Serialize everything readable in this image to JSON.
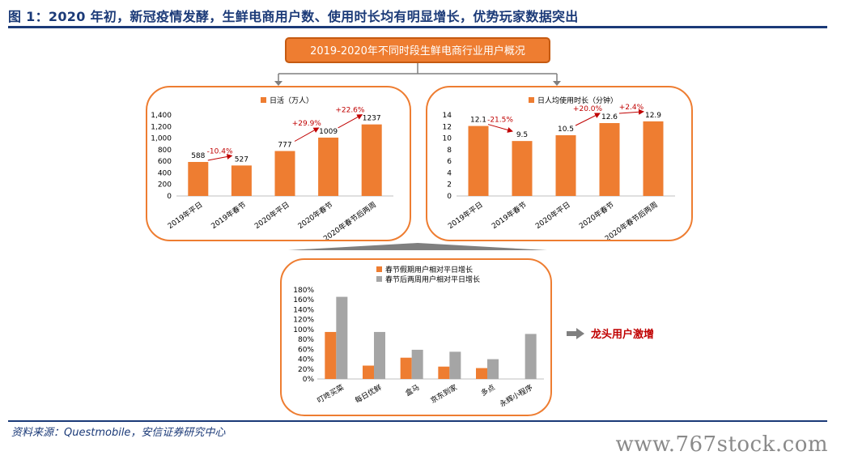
{
  "figure": {
    "title": "图 1：2020 年初，新冠疫情发酵，生鲜电商用户数、使用时长均有明显增长，优势玩家数据突出",
    "header": "2019-2020年不同时段生鲜电商行业用户概况",
    "source": "资料来源：Questmobile，安信证券研究中心",
    "watermark": "www.767stock.com",
    "note_label": "龙头用户激增"
  },
  "colors": {
    "orange": "#ee7d31",
    "gray": "#a5a5a5",
    "navy": "#1b3a78",
    "red": "#c00000"
  },
  "chart_data": [
    {
      "type": "bar",
      "legend": "日活（万人）",
      "categories": [
        "2019年平日",
        "2019年春节",
        "2020年平日",
        "2020年春节",
        "2020年春节后两周"
      ],
      "values": [
        588,
        527,
        777,
        1009,
        1237
      ],
      "data_labels": [
        "588",
        "527",
        "777",
        "1009",
        "1237"
      ],
      "ylim": [
        0,
        1400
      ],
      "yticks": [
        "0",
        "200",
        "400",
        "600",
        "800",
        "1,000",
        "1,200",
        "1,400"
      ],
      "annotations": [
        {
          "text": "-10.4%",
          "from": 0,
          "to": 1
        },
        {
          "text": "+29.9%",
          "from": 2,
          "to": 3
        },
        {
          "text": "+22.6%",
          "from": 3,
          "to": 4
        }
      ]
    },
    {
      "type": "bar",
      "legend": "日人均使用时长（分钟）",
      "categories": [
        "2019年平日",
        "2019年春节",
        "2020年平日",
        "2020年春节",
        "2020年春节后两周"
      ],
      "values": [
        12.1,
        9.5,
        10.5,
        12.6,
        12.9
      ],
      "data_labels": [
        "12.1",
        "9.5",
        "10.5",
        "12.6",
        "12.9"
      ],
      "ylim": [
        0,
        14
      ],
      "yticks": [
        "0",
        "2",
        "4",
        "6",
        "8",
        "10",
        "12",
        "14"
      ],
      "annotations": [
        {
          "text": "-21.5%",
          "from": 0,
          "to": 1
        },
        {
          "text": "+20.0%",
          "from": 2,
          "to": 3
        },
        {
          "text": "+2.4%",
          "from": 3,
          "to": 4
        }
      ]
    },
    {
      "type": "bar",
      "categories": [
        "叮咚买菜",
        "每日优鲜",
        "盒马",
        "京东到家",
        "多点",
        "永辉小程序"
      ],
      "series": [
        {
          "name": "春节假期用户相对平日增长",
          "values": [
            95,
            27,
            43,
            25,
            22,
            null
          ]
        },
        {
          "name": "春节后两周用户相对平日增长",
          "values": [
            166,
            95,
            59,
            55,
            40,
            91
          ]
        }
      ],
      "ylim": [
        0,
        180
      ],
      "yticks": [
        "0%",
        "20%",
        "40%",
        "60%",
        "80%",
        "100%",
        "120%",
        "140%",
        "160%",
        "180%"
      ]
    }
  ]
}
